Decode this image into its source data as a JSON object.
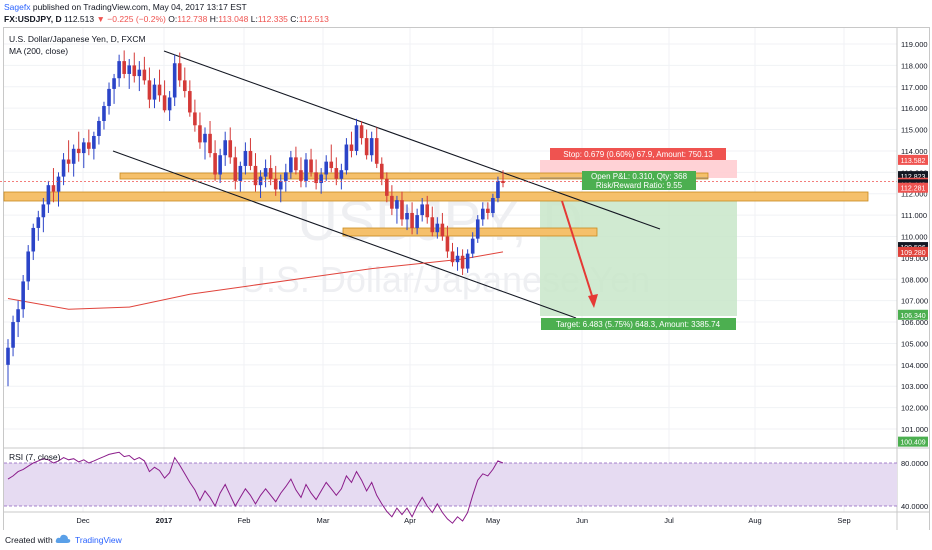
{
  "header": {
    "author": "Sagefx",
    "published": "published on TradingView.com, May 04, 2017 13:17 EST",
    "symbol": "FX:USDJPY, D",
    "last": "112.513",
    "change": "−0.225 (−0.2%)",
    "open_label": "O:",
    "open": "112.738",
    "high_label": "H:",
    "high": "113.048",
    "low_label": "L:",
    "low": "112.335",
    "close_label": "C:",
    "close": "112.513"
  },
  "legend": {
    "title": "U.S. Dollar/Japanese Yen, D, FXCM",
    "ma": "MA (200, close)",
    "rsi": "RSI (7, close)"
  },
  "watermark": {
    "ticker": "USDJPY, D",
    "name": "U.S. Dollar/Japanese Yen"
  },
  "footer": {
    "created": "Created with",
    "brand": "TradingView"
  },
  "colors": {
    "up": "#2b44c8",
    "down": "#d43a38",
    "ma": "#e0443c",
    "zone": "#f5c06b",
    "zone_edge": "#c98a1f",
    "target": "#4caf50",
    "stop": "#ef5350",
    "rsi_line": "#8b1d8b",
    "rsi_band": "#e6dbf2",
    "arrow": "#e53935"
  },
  "position_labels": {
    "stop": "Stop: 0.679 (0.60%) 67.9, Amount: 750.13",
    "pnl": "Open P&L: 0.310, Qty: 368",
    "rr": "Risk/Reward Ratio: 9.55",
    "target": "Target: 6.483 (5.75%) 648.3, Amount: 3385.74"
  },
  "chart_data": {
    "type": "candlestick",
    "y_axis": {
      "ticks": [
        "101.000",
        "102.000",
        "103.000",
        "104.000",
        "105.000",
        "106.000",
        "107.000",
        "108.000",
        "109.000",
        "110.000",
        "111.000",
        "112.000",
        "113.000",
        "114.000",
        "115.000",
        "116.000",
        "117.000",
        "118.000",
        "119.000"
      ],
      "range": [
        100.3,
        119.4
      ]
    },
    "x_axis": {
      "ticks": [
        "Dec",
        "2017",
        "Feb",
        "Mar",
        "Apr",
        "May",
        "Jun",
        "Jul",
        "Aug",
        "Sep"
      ]
    },
    "price_tags": [
      {
        "value": 113.582,
        "label": "113.582",
        "color": "#ef5350"
      },
      {
        "value": 112.823,
        "label": "112.823",
        "color": "#131722"
      },
      {
        "value": 112.513,
        "label": "112.513",
        "color": "#ef5350"
      },
      {
        "value": 112.44,
        "label": "112.440",
        "color": "#131722"
      },
      {
        "value": 112.281,
        "label": "112.281",
        "color": "#ef5350"
      },
      {
        "value": 109.506,
        "label": "109.506",
        "color": "#131722"
      },
      {
        "value": 109.28,
        "label": "109.280",
        "color": "#e0443c"
      },
      {
        "value": 106.34,
        "label": "106.340",
        "color": "#4caf50"
      },
      {
        "value": 100.409,
        "label": "100.409",
        "color": "#4caf50"
      }
    ],
    "rsi": {
      "ticks": [
        "40.0000",
        "80.0000"
      ],
      "range": [
        10,
        100
      ]
    },
    "candles": [
      [
        104.0,
        105.2,
        103.0,
        104.8
      ],
      [
        104.8,
        106.3,
        104.4,
        106.0
      ],
      [
        106.0,
        107.0,
        105.3,
        106.6
      ],
      [
        106.6,
        108.2,
        106.2,
        107.9
      ],
      [
        107.9,
        109.6,
        107.5,
        109.3
      ],
      [
        109.3,
        110.6,
        108.9,
        110.4
      ],
      [
        110.4,
        111.2,
        109.8,
        110.9
      ],
      [
        110.9,
        111.8,
        110.2,
        111.5
      ],
      [
        111.5,
        112.6,
        111.1,
        112.4
      ],
      [
        112.4,
        113.2,
        111.6,
        112.1
      ],
      [
        112.1,
        113.0,
        111.4,
        112.8
      ],
      [
        112.8,
        113.9,
        112.4,
        113.6
      ],
      [
        113.6,
        114.5,
        113.0,
        113.4
      ],
      [
        113.4,
        114.3,
        112.8,
        114.1
      ],
      [
        114.1,
        114.9,
        113.5,
        113.9
      ],
      [
        113.9,
        114.6,
        113.2,
        114.4
      ],
      [
        114.4,
        115.0,
        113.8,
        114.1
      ],
      [
        114.1,
        114.9,
        113.6,
        114.7
      ],
      [
        114.7,
        115.6,
        114.3,
        115.4
      ],
      [
        115.4,
        116.3,
        115.0,
        116.1
      ],
      [
        116.1,
        117.2,
        115.7,
        116.9
      ],
      [
        116.9,
        117.6,
        116.2,
        117.4
      ],
      [
        117.4,
        118.5,
        117.0,
        118.2
      ],
      [
        118.2,
        118.7,
        117.4,
        117.6
      ],
      [
        117.6,
        118.3,
        116.9,
        118.0
      ],
      [
        118.0,
        118.6,
        117.2,
        117.5
      ],
      [
        117.5,
        118.2,
        116.8,
        117.8
      ],
      [
        117.8,
        118.4,
        117.1,
        117.3
      ],
      [
        117.3,
        117.9,
        116.0,
        116.4
      ],
      [
        116.4,
        117.4,
        116.0,
        117.1
      ],
      [
        117.1,
        117.8,
        116.3,
        116.6
      ],
      [
        116.6,
        117.3,
        115.8,
        115.9
      ],
      [
        115.9,
        116.8,
        115.4,
        116.5
      ],
      [
        116.5,
        118.5,
        116.1,
        118.1
      ],
      [
        118.1,
        118.6,
        117.0,
        117.3
      ],
      [
        117.3,
        117.9,
        116.5,
        116.8
      ],
      [
        116.8,
        117.3,
        115.6,
        115.8
      ],
      [
        115.8,
        116.4,
        114.9,
        115.2
      ],
      [
        115.2,
        115.8,
        114.1,
        114.4
      ],
      [
        114.4,
        115.1,
        113.6,
        114.8
      ],
      [
        114.8,
        115.4,
        113.7,
        113.9
      ],
      [
        113.9,
        114.5,
        112.6,
        112.9
      ],
      [
        112.9,
        114.1,
        112.5,
        113.8
      ],
      [
        113.8,
        114.9,
        113.3,
        114.5
      ],
      [
        114.5,
        115.1,
        113.4,
        113.7
      ],
      [
        113.7,
        114.2,
        112.2,
        112.6
      ],
      [
        112.6,
        113.5,
        112.1,
        113.3
      ],
      [
        113.3,
        114.4,
        112.9,
        114.0
      ],
      [
        114.0,
        114.6,
        113.1,
        113.3
      ],
      [
        113.3,
        113.9,
        112.1,
        112.4
      ],
      [
        112.4,
        113.1,
        111.8,
        112.8
      ],
      [
        112.8,
        113.6,
        112.3,
        113.2
      ],
      [
        113.2,
        113.8,
        112.4,
        112.7
      ],
      [
        112.7,
        113.3,
        111.9,
        112.2
      ],
      [
        112.2,
        112.9,
        111.6,
        112.6
      ],
      [
        112.6,
        113.4,
        112.1,
        113.0
      ],
      [
        113.0,
        114.0,
        112.7,
        113.7
      ],
      [
        113.7,
        114.2,
        112.9,
        113.1
      ],
      [
        113.1,
        113.7,
        112.3,
        112.6
      ],
      [
        112.6,
        113.9,
        112.3,
        113.6
      ],
      [
        113.6,
        114.1,
        112.8,
        113.0
      ],
      [
        113.0,
        113.6,
        112.2,
        112.5
      ],
      [
        112.5,
        113.2,
        112.0,
        112.9
      ],
      [
        112.9,
        113.8,
        112.6,
        113.5
      ],
      [
        113.5,
        114.3,
        113.0,
        113.2
      ],
      [
        113.2,
        113.7,
        112.4,
        112.7
      ],
      [
        112.7,
        113.4,
        112.2,
        113.1
      ],
      [
        113.1,
        114.6,
        112.9,
        114.3
      ],
      [
        114.3,
        114.9,
        113.7,
        114.0
      ],
      [
        114.0,
        115.5,
        113.8,
        115.2
      ],
      [
        115.2,
        115.4,
        114.3,
        114.6
      ],
      [
        114.6,
        115.0,
        113.6,
        113.8
      ],
      [
        113.8,
        114.9,
        113.5,
        114.6
      ],
      [
        114.6,
        115.1,
        113.2,
        113.4
      ],
      [
        113.4,
        113.7,
        112.4,
        112.7
      ],
      [
        112.7,
        113.0,
        111.6,
        111.9
      ],
      [
        111.9,
        112.4,
        111.0,
        111.3
      ],
      [
        111.3,
        111.9,
        110.6,
        111.7
      ],
      [
        111.7,
        112.1,
        110.5,
        110.8
      ],
      [
        110.8,
        111.5,
        110.3,
        111.1
      ],
      [
        111.1,
        111.6,
        110.1,
        110.4
      ],
      [
        110.4,
        111.3,
        110.1,
        111.0
      ],
      [
        111.0,
        111.8,
        110.7,
        111.5
      ],
      [
        111.5,
        111.9,
        110.6,
        110.9
      ],
      [
        110.9,
        111.4,
        110.0,
        110.2
      ],
      [
        110.2,
        110.9,
        109.9,
        110.6
      ],
      [
        110.6,
        111.1,
        109.8,
        110.0
      ],
      [
        110.0,
        110.5,
        109.0,
        109.3
      ],
      [
        109.3,
        109.7,
        108.6,
        108.8
      ],
      [
        108.8,
        109.5,
        108.4,
        109.1
      ],
      [
        109.1,
        109.4,
        108.2,
        108.5
      ],
      [
        108.5,
        109.4,
        108.3,
        109.2
      ],
      [
        109.2,
        110.2,
        109.0,
        109.9
      ],
      [
        109.9,
        111.0,
        109.7,
        110.8
      ],
      [
        110.8,
        111.6,
        110.5,
        111.3
      ],
      [
        111.3,
        111.6,
        110.8,
        111.1
      ],
      [
        111.1,
        112.0,
        110.9,
        111.8
      ],
      [
        111.8,
        112.8,
        111.6,
        112.6
      ],
      [
        112.6,
        113.1,
        112.3,
        112.5
      ]
    ],
    "ma_200": [
      [
        0,
        107.1
      ],
      [
        12,
        106.6
      ],
      [
        24,
        106.7
      ],
      [
        36,
        107.3
      ],
      [
        48,
        107.7
      ],
      [
        60,
        108.1
      ],
      [
        72,
        108.5
      ],
      [
        84,
        108.8
      ],
      [
        90,
        108.95
      ],
      [
        98,
        109.28
      ]
    ],
    "rsi_values": [
      65,
      68,
      72,
      74,
      77,
      80,
      82,
      84,
      83,
      80,
      82,
      85,
      83,
      84,
      81,
      83,
      80,
      82,
      84,
      86,
      88,
      89,
      90,
      86,
      87,
      83,
      85,
      82,
      72,
      76,
      73,
      66,
      71,
      85,
      78,
      70,
      62,
      55,
      45,
      54,
      48,
      40,
      52,
      60,
      50,
      40,
      48,
      56,
      50,
      42,
      50,
      56,
      50,
      44,
      52,
      58,
      65,
      55,
      48,
      60,
      52,
      46,
      54,
      62,
      56,
      50,
      56,
      68,
      62,
      72,
      64,
      54,
      62,
      50,
      42,
      35,
      30,
      38,
      32,
      38,
      30,
      40,
      48,
      40,
      34,
      42,
      34,
      28,
      24,
      30,
      26,
      34,
      50,
      64,
      70,
      68,
      74,
      82,
      80
    ]
  }
}
